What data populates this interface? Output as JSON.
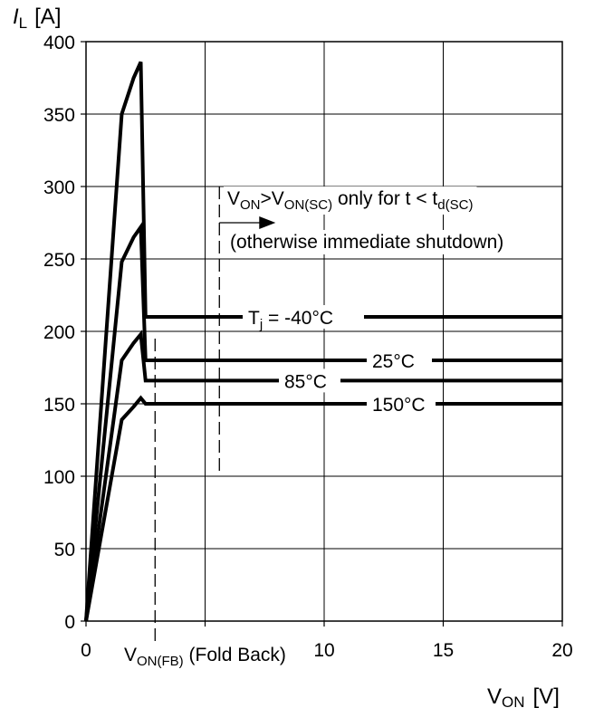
{
  "chart_data": {
    "type": "line",
    "ylabel_main": "I",
    "ylabel_sub": "L",
    "ylabel_unit": "[A]",
    "xlabel_main": "V",
    "xlabel_sub": "ON",
    "xlabel_unit": "[V]",
    "xlim": [
      0,
      20
    ],
    "ylim": [
      0,
      400
    ],
    "grid": true,
    "x_ticks": [
      {
        "value": 0,
        "label": "0"
      },
      {
        "value": 5,
        "label": ""
      },
      {
        "value": 10,
        "label": "10"
      },
      {
        "value": 15,
        "label": "15"
      },
      {
        "value": 20,
        "label": "20"
      }
    ],
    "y_ticks": [
      {
        "value": 0,
        "label": "0"
      },
      {
        "value": 50,
        "label": "50"
      },
      {
        "value": 100,
        "label": "100"
      },
      {
        "value": 150,
        "label": "150"
      },
      {
        "value": 200,
        "label": "200"
      },
      {
        "value": 250,
        "label": "250"
      },
      {
        "value": 300,
        "label": "300"
      },
      {
        "value": 350,
        "label": "350"
      },
      {
        "value": 400,
        "label": "400"
      }
    ],
    "foldback_marker": {
      "x": 2.3,
      "label_main": "V",
      "label_sub": "ON(FB)",
      "label_rest": " (Fold Back)"
    },
    "shutdown_marker": {
      "x": 5.6,
      "line1_a": "V",
      "line1_b": "ON",
      "line1_c": ">V",
      "line1_d": "ON(SC)",
      "line1_e": " only for t < t",
      "line1_f": "d(SC)",
      "line2": "(otherwise immediate shutdown)"
    },
    "series": [
      {
        "name": "T_j = -40°C",
        "label_a": "T",
        "label_b": "j",
        "label_c": " = -40°C",
        "x": [
          0,
          1.5,
          2.0,
          2.3,
          2.5,
          20
        ],
        "y": [
          0,
          350,
          375,
          386,
          210,
          210
        ]
      },
      {
        "name": "25°C",
        "label_a": "25°C",
        "x": [
          0,
          1.5,
          2.0,
          2.3,
          2.5,
          20
        ],
        "y": [
          0,
          248,
          265,
          272,
          180,
          180
        ]
      },
      {
        "name": "85°C",
        "label_a": "85°C",
        "x": [
          0,
          1.5,
          2.0,
          2.3,
          2.5,
          20
        ],
        "y": [
          0,
          180,
          192,
          198,
          166,
          166
        ]
      },
      {
        "name": "150°C",
        "label_a": "150°C",
        "x": [
          0,
          1.5,
          2.0,
          2.3,
          2.5,
          20
        ],
        "y": [
          0,
          139,
          148,
          154,
          150,
          150
        ]
      }
    ]
  }
}
